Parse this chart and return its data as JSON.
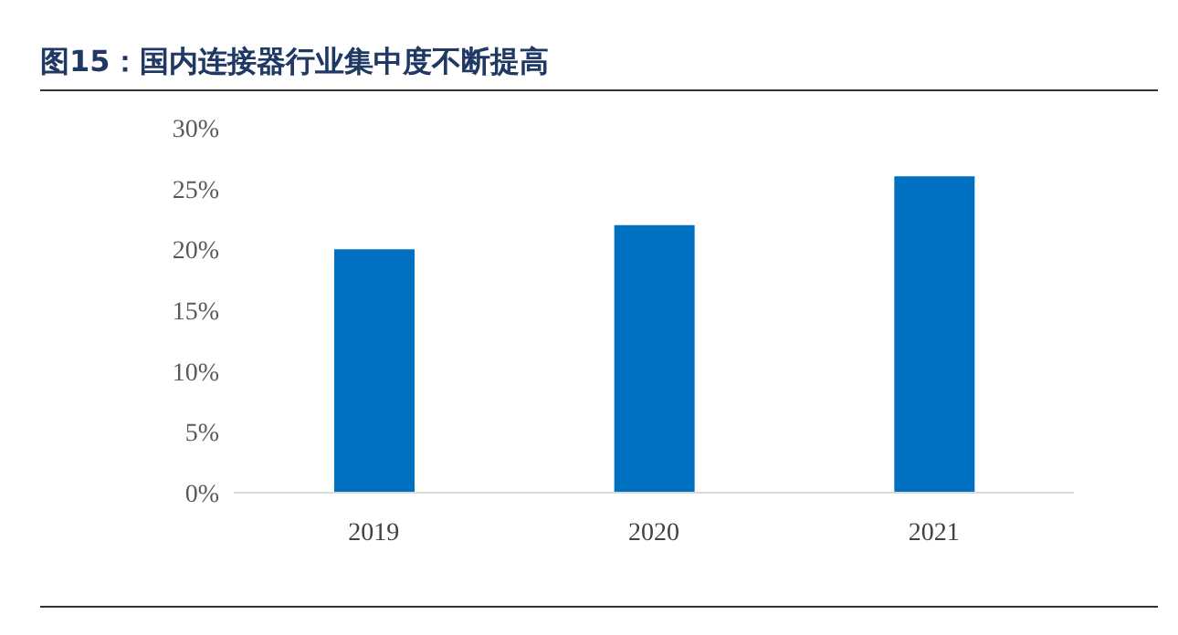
{
  "chart_data": {
    "type": "bar",
    "title": "图15：国内连接器行业集中度不断提高",
    "categories": [
      "2019",
      "2020",
      "2021"
    ],
    "values": [
      20,
      22,
      26
    ],
    "color": "#0070c0",
    "ylim": [
      0,
      30
    ],
    "yticks": [
      {
        "value": 0,
        "label": "0%"
      },
      {
        "value": 5,
        "label": "5%"
      },
      {
        "value": 10,
        "label": "10%"
      },
      {
        "value": 15,
        "label": "15%"
      },
      {
        "value": 20,
        "label": "20%"
      },
      {
        "value": 25,
        "label": "25%"
      },
      {
        "value": 30,
        "label": "30%"
      }
    ],
    "grid": false,
    "legend": false
  }
}
